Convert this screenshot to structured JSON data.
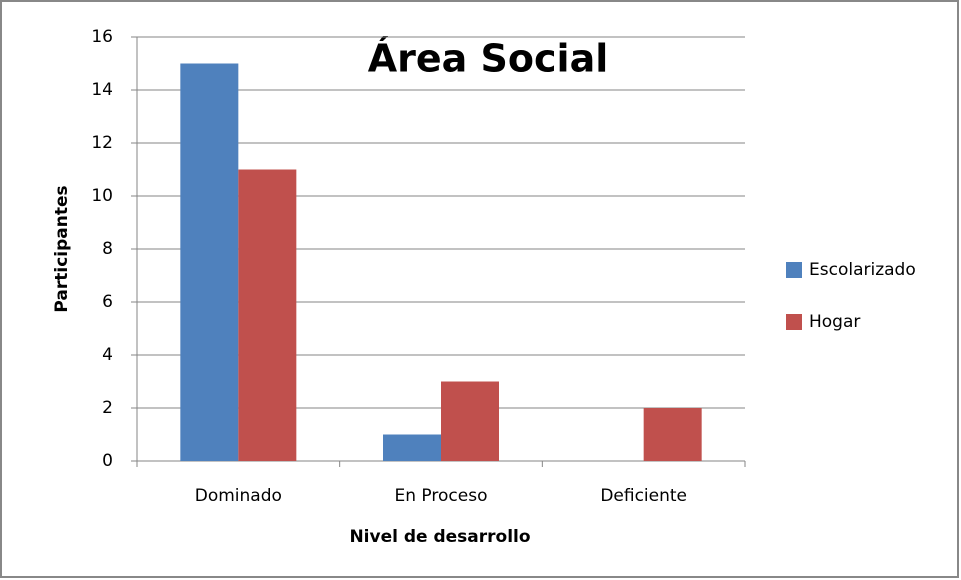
{
  "chart_data": {
    "type": "bar",
    "title": "Área Social",
    "categories": [
      "Dominado",
      "En Proceso",
      "Deficiente"
    ],
    "series": [
      {
        "name": "Escolarizado",
        "color": "#4f81bd",
        "values": [
          15,
          1,
          0
        ]
      },
      {
        "name": "Hogar",
        "color": "#c0504d",
        "values": [
          11,
          3,
          2
        ]
      }
    ],
    "xlabel": "Nivel de desarrollo",
    "ylabel": "Participantes",
    "ylim": [
      0,
      16
    ],
    "yticks": [
      0,
      2,
      4,
      6,
      8,
      10,
      12,
      14,
      16
    ],
    "grid": true,
    "legend": "right"
  }
}
